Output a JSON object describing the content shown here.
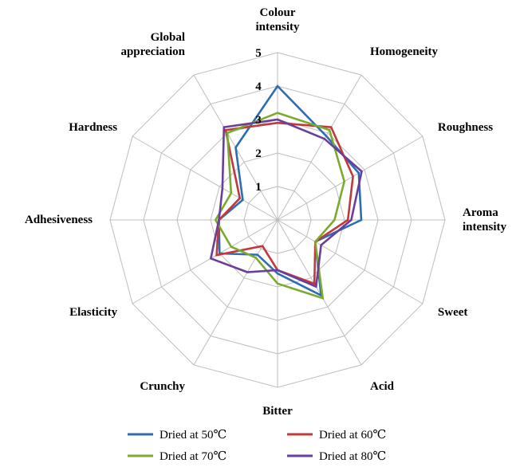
{
  "chart_data": {
    "type": "radar",
    "axes": [
      [
        "Colour",
        "intensity"
      ],
      [
        "Homogeneity"
      ],
      [
        "Roughness"
      ],
      [
        "Aroma",
        "intensity"
      ],
      [
        "Sweet"
      ],
      [
        "Acid"
      ],
      [
        "Bitter"
      ],
      [
        "Crunchy"
      ],
      [
        "Elasticity"
      ],
      [
        "Adhesiveness"
      ],
      [
        "Hardness"
      ],
      [
        "Global",
        "appreciation"
      ]
    ],
    "rlim": [
      0,
      5
    ],
    "ticks": [
      1,
      2,
      3,
      4,
      5
    ],
    "grid": true,
    "legend_position": "bottom",
    "series": [
      {
        "name": "Dried at 50℃",
        "color": "#2e6db4",
        "values": [
          4.0,
          2.9,
          2.8,
          2.5,
          1.3,
          2.6,
          1.6,
          1.2,
          2.0,
          1.75,
          1.2,
          2.5
        ]
      },
      {
        "name": "Dried at 60℃",
        "color": "#c0393b",
        "values": [
          2.9,
          3.2,
          2.6,
          2.1,
          1.3,
          2.2,
          1.5,
          0.9,
          2.1,
          1.75,
          1.3,
          3.1
        ]
      },
      {
        "name": "Dried at 70℃",
        "color": "#7aab2e",
        "values": [
          3.2,
          3.1,
          2.3,
          1.7,
          1.3,
          2.7,
          1.9,
          1.3,
          1.6,
          1.85,
          1.6,
          3.0
        ]
      },
      {
        "name": "Dried at 80℃",
        "color": "#6a3e9a",
        "values": [
          3.0,
          2.8,
          2.9,
          2.2,
          1.5,
          2.3,
          1.5,
          1.8,
          2.3,
          1.75,
          1.9,
          3.2
        ]
      }
    ]
  }
}
